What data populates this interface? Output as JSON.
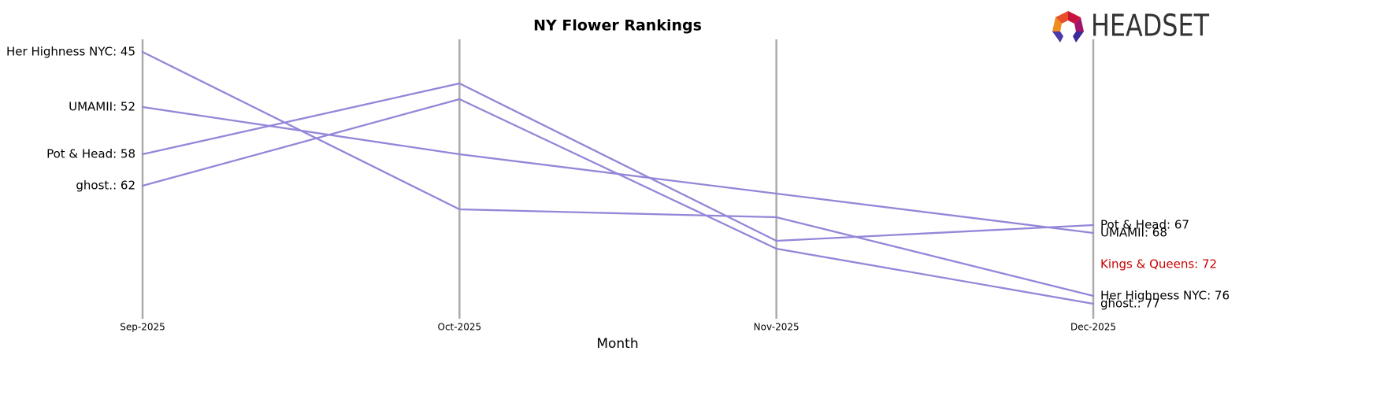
{
  "chart_data": {
    "type": "bump",
    "title": "NY Flower Rankings",
    "xlabel": "Month",
    "logo": "HEADSET",
    "categories": [
      "Sep-2025",
      "Oct-2025",
      "Nov-2025",
      "Dec-2025"
    ],
    "ylim": [
      43.4,
      78.4
    ],
    "y_inverted": true,
    "line_color": "#9486d8",
    "series": [
      {
        "name": "Her Highness NYC",
        "values": [
          45,
          65,
          66,
          76
        ],
        "start_label": "Her Highness NYC: 45",
        "end_label": "Her Highness NYC: 76",
        "label_color": "#000000"
      },
      {
        "name": "UMAMII",
        "values": [
          52,
          58,
          63,
          68
        ],
        "start_label": "UMAMII: 52",
        "end_label": "UMAMII: 68",
        "label_color": "#000000"
      },
      {
        "name": "Pot & Head",
        "values": [
          58,
          49,
          69,
          67
        ],
        "start_label": "Pot & Head: 58",
        "end_label": "Pot & Head: 67",
        "label_color": "#000000"
      },
      {
        "name": "ghost.",
        "values": [
          62,
          51,
          70,
          77
        ],
        "start_label": "ghost.: 62",
        "end_label": "ghost.: 77",
        "label_color": "#000000"
      },
      {
        "name": "Kings & Queens",
        "values": [
          null,
          null,
          null,
          72
        ],
        "end_label": "Kings & Queens: 72",
        "label_color": "#cc0000"
      }
    ]
  }
}
